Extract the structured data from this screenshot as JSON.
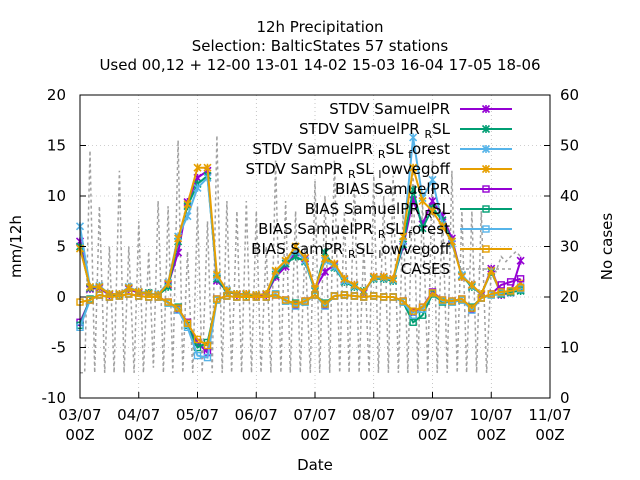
{
  "chart_data": {
    "type": "line",
    "title_lines": [
      "12h Precipitation",
      "Selection: BalticStates      57 stations",
      "Used  00,12  + 12-00 13-01 14-02 15-03 16-04 17-05 18-06"
    ],
    "xlabel": "Date",
    "ylabel": "mm/12h",
    "y2label": "No cases",
    "x_ticks": [
      {
        "day": 0,
        "l1": "03/07",
        "l2": "00Z"
      },
      {
        "day": 1,
        "l1": "04/07",
        "l2": "00Z"
      },
      {
        "day": 2,
        "l1": "05/07",
        "l2": "00Z"
      },
      {
        "day": 3,
        "l1": "06/07",
        "l2": "00Z"
      },
      {
        "day": 4,
        "l1": "07/07",
        "l2": "00Z"
      },
      {
        "day": 5,
        "l1": "08/07",
        "l2": "00Z"
      },
      {
        "day": 6,
        "l1": "09/07",
        "l2": "00Z"
      },
      {
        "day": 7,
        "l1": "10/07",
        "l2": "00Z"
      },
      {
        "day": 8,
        "l1": "11/07",
        "l2": "00Z"
      }
    ],
    "xlim": [
      0,
      8
    ],
    "ylim": [
      -10,
      20
    ],
    "y2lim": [
      0,
      60
    ],
    "y_ticks": [
      -10,
      -5,
      0,
      5,
      10,
      15,
      20
    ],
    "y2_ticks": [
      0,
      10,
      20,
      30,
      40,
      50,
      60
    ],
    "grid": true,
    "legend_position": "top-right",
    "series": [
      {
        "name": "STDV SamuelPR",
        "sub": "",
        "tail": "",
        "color": "#9400d3",
        "marker": "x",
        "x": [
          0,
          0.17,
          0.33,
          0.5,
          0.67,
          0.83,
          1,
          1.17,
          1.33,
          1.5,
          1.67,
          1.83,
          2,
          2.17,
          2.33,
          2.5,
          2.67,
          2.83,
          3,
          3.17,
          3.33,
          3.5,
          3.67,
          3.83,
          4,
          4.17,
          4.33,
          4.5,
          4.67,
          4.83,
          5,
          5.17,
          5.33,
          5.5,
          5.67,
          5.83,
          6,
          6.17,
          6.33,
          6.5,
          6.67,
          6.83,
          7,
          7.17,
          7.33,
          7.5
        ],
        "y": [
          5.5,
          0.8,
          0.9,
          0.2,
          0.3,
          0.8,
          0.4,
          0.3,
          0.2,
          1.2,
          4.4,
          9.4,
          11.8,
          12.5,
          1.6,
          0.6,
          0.2,
          0.3,
          0.1,
          0.2,
          2.0,
          3.0,
          4.4,
          3.8,
          0.8,
          2.5,
          3.2,
          1.7,
          1.2,
          0.4,
          2.0,
          2.0,
          1.8,
          5.0,
          9.6,
          7.2,
          9.5,
          8.0,
          5.8,
          2.0,
          1.2,
          0.2,
          2.8,
          0.2,
          0.4,
          3.6
        ]
      },
      {
        "name": "STDV SamuelPR",
        "sub": "R",
        "tail": "SL",
        "color": "#009e73",
        "marker": "x",
        "x": [
          0,
          0.17,
          0.33,
          0.5,
          0.67,
          0.83,
          1,
          1.17,
          1.33,
          1.5,
          1.67,
          1.83,
          2,
          2.17,
          2.33,
          2.5,
          2.67,
          2.83,
          3,
          3.17,
          3.33,
          3.5,
          3.67,
          3.83,
          4,
          4.17,
          4.33,
          4.5,
          4.67,
          4.83,
          5,
          5.17,
          5.33,
          5.5,
          5.67,
          5.83,
          6,
          6.17,
          6.33,
          6.5,
          6.67,
          6.83,
          7,
          7.17,
          7.33,
          7.5
        ],
        "y": [
          5.0,
          0.9,
          1.0,
          0.3,
          0.2,
          0.9,
          0.5,
          0.4,
          0.2,
          1.0,
          5.5,
          9.0,
          11.2,
          12.0,
          1.8,
          0.5,
          0.3,
          0.2,
          0.2,
          0.3,
          2.2,
          3.3,
          4.0,
          3.5,
          0.6,
          4.4,
          2.9,
          1.5,
          1.0,
          0.6,
          1.8,
          1.8,
          1.6,
          5.2,
          10.6,
          6.8,
          8.8,
          7.6,
          5.5,
          2.1,
          1.0,
          0.3,
          2.5,
          0.3,
          0.5,
          0.6
        ]
      },
      {
        "name": "STDV SamuelPR",
        "sub": "R",
        "tail": "SL",
        "sub2": "f",
        "tail2": "orest",
        "color": "#56b4e9",
        "marker": "x",
        "x": [
          0,
          0.17,
          0.33,
          0.5,
          0.67,
          0.83,
          1,
          1.17,
          1.33,
          1.5,
          1.67,
          1.83,
          2,
          2.17,
          2.33,
          2.5,
          2.67,
          2.83,
          3,
          3.17,
          3.33,
          3.5,
          3.67,
          3.83,
          4,
          4.17,
          4.33,
          4.5,
          4.67,
          4.83,
          5,
          5.17,
          5.33,
          5.5,
          5.67,
          5.83,
          6,
          6.17,
          6.33,
          6.5,
          6.67,
          6.83,
          7,
          7.17,
          7.33,
          7.5
        ],
        "y": [
          7.0,
          1.0,
          1.1,
          0.3,
          0.3,
          1.0,
          0.5,
          0.3,
          0.3,
          1.4,
          6.0,
          8.0,
          10.8,
          11.8,
          2.0,
          0.7,
          0.3,
          0.3,
          0.2,
          0.3,
          2.5,
          3.5,
          4.6,
          3.6,
          0.7,
          3.6,
          3.0,
          1.6,
          1.1,
          0.5,
          1.9,
          1.9,
          1.7,
          5.5,
          15.8,
          9.8,
          11.6,
          7.2,
          5.3,
          2.2,
          1.1,
          0.3,
          2.6,
          0.3,
          0.4,
          1.0
        ]
      },
      {
        "name": "STDV SamPR",
        "sub": "R",
        "tail": "SL",
        "sub2": "l",
        "tail2": "owvegoff",
        "color": "#e69f00",
        "marker": "x",
        "x": [
          0,
          0.17,
          0.33,
          0.5,
          0.67,
          0.83,
          1,
          1.17,
          1.33,
          1.5,
          1.67,
          1.83,
          2,
          2.17,
          2.33,
          2.5,
          2.67,
          2.83,
          3,
          3.17,
          3.33,
          3.5,
          3.67,
          3.83,
          4,
          4.17,
          4.33,
          4.5,
          4.67,
          4.83,
          5,
          5.17,
          5.33,
          5.5,
          5.67,
          5.83,
          6,
          6.17,
          6.33,
          6.5,
          6.67,
          6.83,
          7,
          7.17,
          7.33,
          7.5
        ],
        "y": [
          4.8,
          1.0,
          1.0,
          0.3,
          0.3,
          0.9,
          0.5,
          0.3,
          0.2,
          1.3,
          5.8,
          9.2,
          12.8,
          12.8,
          2.2,
          0.6,
          0.3,
          0.3,
          0.2,
          0.3,
          2.6,
          3.6,
          5.0,
          3.9,
          0.8,
          3.8,
          3.3,
          1.8,
          1.2,
          0.5,
          2.0,
          2.0,
          1.8,
          6.0,
          12.8,
          9.5,
          8.5,
          7.0,
          5.5,
          2.0,
          1.2,
          0.3,
          2.6,
          0.3,
          0.5,
          1.4
        ]
      },
      {
        "name": "BIAS SamuelPR",
        "sub": "",
        "tail": "",
        "color": "#9400d3",
        "marker": "s",
        "x": [
          0,
          0.17,
          0.33,
          0.5,
          0.67,
          0.83,
          1,
          1.17,
          1.33,
          1.5,
          1.67,
          1.83,
          2,
          2.17,
          2.33,
          2.5,
          2.67,
          2.83,
          3,
          3.17,
          3.33,
          3.5,
          3.67,
          3.83,
          4,
          4.17,
          4.33,
          4.5,
          4.67,
          4.83,
          5,
          5.17,
          5.33,
          5.5,
          5.67,
          5.83,
          6,
          6.17,
          6.33,
          6.5,
          6.67,
          6.83,
          7,
          7.17,
          7.33,
          7.5
        ],
        "y": [
          -2.5,
          -0.3,
          0.2,
          0.0,
          0.1,
          0.3,
          0.1,
          0.0,
          0.0,
          -0.5,
          -1.2,
          -2.5,
          -4.5,
          -5.5,
          -0.2,
          0.1,
          0.0,
          0.0,
          0.0,
          0.0,
          0.2,
          -0.3,
          -0.8,
          -0.4,
          0.2,
          -0.8,
          0.1,
          0.2,
          0.1,
          0.0,
          0.1,
          0.0,
          0.0,
          -0.4,
          -1.5,
          -1.0,
          0.5,
          -0.3,
          -0.4,
          -0.2,
          -1.2,
          -0.1,
          0.3,
          1.2,
          1.5,
          1.8
        ]
      },
      {
        "name": "BIAS SamuelPR",
        "sub": "R",
        "tail": "SL",
        "color": "#009e73",
        "marker": "s",
        "x": [
          0,
          0.17,
          0.33,
          0.5,
          0.67,
          0.83,
          1,
          1.17,
          1.33,
          1.5,
          1.67,
          1.83,
          2,
          2.17,
          2.33,
          2.5,
          2.67,
          2.83,
          3,
          3.17,
          3.33,
          3.5,
          3.67,
          3.83,
          4,
          4.17,
          4.33,
          4.5,
          4.67,
          4.83,
          5,
          5.17,
          5.33,
          5.5,
          5.67,
          5.83,
          6,
          6.17,
          6.33,
          6.5,
          6.67,
          6.83,
          7,
          7.17,
          7.33,
          7.5
        ],
        "y": [
          -2.8,
          -0.2,
          0.2,
          0.0,
          0.1,
          0.3,
          0.1,
          0.0,
          0.0,
          -0.6,
          -1.0,
          -2.8,
          -5.0,
          -4.5,
          -0.3,
          0.1,
          0.0,
          0.0,
          0.0,
          0.0,
          0.3,
          -0.4,
          -0.6,
          -0.5,
          0.2,
          -0.6,
          0.1,
          0.2,
          0.1,
          0.0,
          0.1,
          0.0,
          0.0,
          -0.5,
          -2.5,
          -1.8,
          0.3,
          -0.5,
          -0.5,
          -0.3,
          -1.0,
          -0.1,
          0.2,
          0.3,
          0.5,
          0.7
        ]
      },
      {
        "name": "BIAS SamuelPR",
        "sub": "R",
        "tail": "SL",
        "sub2": "f",
        "tail2": "orest",
        "color": "#56b4e9",
        "marker": "s",
        "x": [
          0,
          0.17,
          0.33,
          0.5,
          0.67,
          0.83,
          1,
          1.17,
          1.33,
          1.5,
          1.67,
          1.83,
          2,
          2.17,
          2.33,
          2.5,
          2.67,
          2.83,
          3,
          3.17,
          3.33,
          3.5,
          3.67,
          3.83,
          4,
          4.17,
          4.33,
          4.5,
          4.67,
          4.83,
          5,
          5.17,
          5.33,
          5.5,
          5.67,
          5.83,
          6,
          6.17,
          6.33,
          6.5,
          6.67,
          6.83,
          7,
          7.17,
          7.33,
          7.5
        ],
        "y": [
          -3.0,
          -0.3,
          0.2,
          0.0,
          0.1,
          0.3,
          0.1,
          0.0,
          0.0,
          -0.6,
          -1.3,
          -3.0,
          -5.8,
          -6.0,
          -0.3,
          0.1,
          0.0,
          0.0,
          0.0,
          0.0,
          0.3,
          -0.4,
          -0.9,
          -0.5,
          0.2,
          -0.9,
          0.1,
          0.2,
          0.1,
          0.0,
          0.1,
          0.0,
          0.0,
          -0.5,
          -1.8,
          -1.2,
          0.4,
          -0.4,
          -0.5,
          -0.3,
          -1.3,
          -0.1,
          0.2,
          0.4,
          0.6,
          0.8
        ]
      },
      {
        "name": "BIAS SamPR",
        "sub": "R",
        "tail": "SL",
        "sub2": "l",
        "tail2": "owvegoff",
        "color": "#e69f00",
        "marker": "s",
        "x": [
          0,
          0.17,
          0.33,
          0.5,
          0.67,
          0.83,
          1,
          1.17,
          1.33,
          1.5,
          1.67,
          1.83,
          2,
          2.17,
          2.33,
          2.5,
          2.67,
          2.83,
          3,
          3.17,
          3.33,
          3.5,
          3.67,
          3.83,
          4,
          4.17,
          4.33,
          4.5,
          4.67,
          4.83,
          5,
          5.17,
          5.33,
          5.5,
          5.67,
          5.83,
          6,
          6.17,
          6.33,
          6.5,
          6.67,
          6.83,
          7,
          7.17,
          7.33,
          7.5
        ],
        "y": [
          -0.5,
          -0.3,
          0.2,
          0.0,
          0.1,
          0.3,
          0.1,
          0.0,
          0.0,
          -0.5,
          -1.1,
          -2.6,
          -4.2,
          -4.8,
          -0.2,
          0.1,
          0.0,
          0.0,
          0.0,
          0.0,
          0.2,
          -0.3,
          -0.7,
          -0.4,
          0.2,
          -0.7,
          0.1,
          0.2,
          0.1,
          0.0,
          0.1,
          0.0,
          0.0,
          -0.4,
          -1.4,
          -1.0,
          0.4,
          -0.3,
          -0.4,
          -0.2,
          -1.1,
          -0.1,
          0.3,
          0.5,
          0.6,
          0.9
        ]
      },
      {
        "name": "CASES",
        "sub": "",
        "tail": "",
        "color": "#a0a0a0",
        "marker": "none",
        "dashed": true,
        "axis": "y2",
        "x": [
          0,
          0.08,
          0.17,
          0.25,
          0.33,
          0.42,
          0.5,
          0.58,
          0.67,
          0.75,
          0.83,
          0.92,
          1,
          1.08,
          1.17,
          1.25,
          1.33,
          1.42,
          1.5,
          1.58,
          1.67,
          1.75,
          1.83,
          1.92,
          2,
          2.08,
          2.17,
          2.25,
          2.33,
          2.42,
          2.5,
          2.58,
          2.67,
          2.75,
          2.83,
          2.92,
          3,
          3.08,
          3.17,
          3.25,
          3.33,
          3.42,
          3.5,
          3.58,
          3.67,
          3.75,
          3.83,
          3.92,
          4,
          4.08,
          4.17,
          4.25,
          4.33,
          4.42,
          4.5,
          4.58,
          4.67,
          4.75,
          4.83,
          4.92,
          5,
          5.08,
          5.17,
          5.25,
          5.33,
          5.42,
          5.5,
          5.58,
          5.67,
          5.75,
          5.83,
          5.92,
          6,
          6.08,
          6.17,
          6.25,
          6.33,
          6.42,
          6.5,
          6.58,
          6.67,
          6.75,
          6.83,
          6.92,
          7,
          7.08,
          7.17,
          7.25,
          7.33,
          7.42,
          7.5
        ],
        "y": [
          5,
          5,
          49,
          5,
          38,
          5,
          30,
          5,
          45,
          5,
          30,
          5,
          35,
          5,
          29,
          6,
          39,
          5,
          38,
          5,
          51,
          5,
          29,
          5,
          38,
          5,
          35,
          5,
          52,
          5,
          39,
          5,
          37,
          5,
          39,
          5,
          37,
          5,
          30,
          5,
          47,
          5,
          39,
          5,
          37,
          5,
          30,
          5,
          43,
          5,
          40,
          5,
          47,
          5,
          37,
          5,
          43,
          5,
          30,
          5,
          44,
          5,
          40,
          5,
          44,
          5,
          37,
          5,
          45,
          5,
          39,
          5,
          47,
          5,
          37,
          5,
          45,
          5,
          37,
          5,
          37,
          5,
          37,
          5,
          26,
          25,
          28,
          27,
          28,
          29,
          28
        ]
      }
    ]
  }
}
